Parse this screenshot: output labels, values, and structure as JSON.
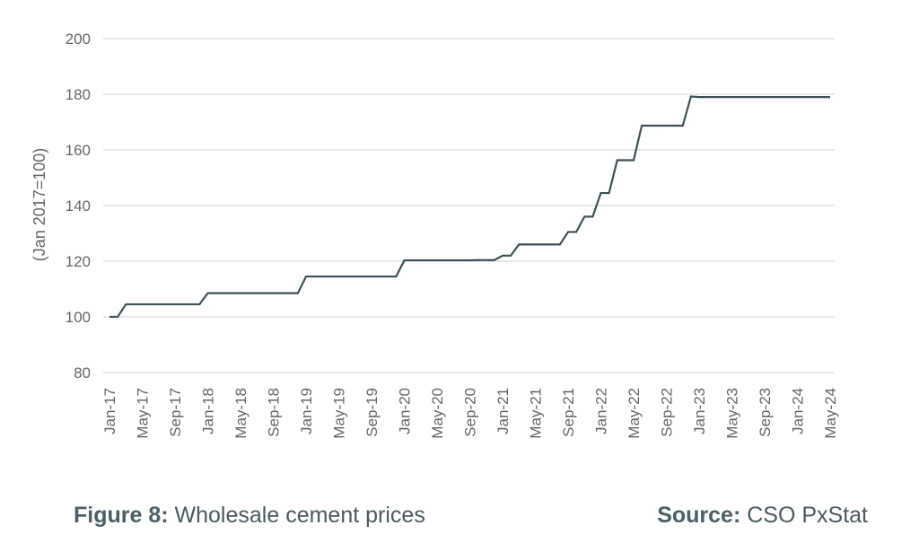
{
  "caption": {
    "figure_label": "Figure 8:",
    "figure_text": "Wholesale cement prices",
    "source_label": "Source:",
    "source_text": "CSO PxStat"
  },
  "colors": {
    "line": "#3d5157",
    "grid": "#d9d9d9",
    "text": "#666666"
  },
  "chart_data": {
    "type": "line",
    "ylabel": "(Jan 2017=100)",
    "xlabel": "",
    "ylim": [
      80,
      200
    ],
    "yticks": [
      80,
      100,
      120,
      140,
      160,
      180,
      200
    ],
    "grid": true,
    "x_tick_labels": [
      "Jan-17",
      "May-17",
      "Sep-17",
      "Jan-18",
      "May-18",
      "Sep-18",
      "Jan-19",
      "May-19",
      "Sep-19",
      "Jan-20",
      "May-20",
      "Sep-20",
      "Jan-21",
      "May-21",
      "Sep-21",
      "Jan-22",
      "May-22",
      "Sep-22",
      "Jan-23",
      "May-23",
      "Sep-23",
      "Jan-24",
      "May-24"
    ],
    "x_start": "Jan-17",
    "x_end": "May-24",
    "series": [
      {
        "values": [
          100,
          100,
          104.5,
          104.5,
          104.5,
          104.5,
          104.5,
          104.5,
          104.5,
          104.5,
          104.5,
          104.5,
          108.5,
          108.5,
          108.5,
          108.5,
          108.5,
          108.5,
          108.5,
          108.5,
          108.5,
          108.5,
          108.5,
          108.5,
          114.5,
          114.5,
          114.5,
          114.5,
          114.5,
          114.5,
          114.5,
          114.5,
          114.5,
          114.5,
          114.5,
          114.5,
          120.3,
          120.3,
          120.3,
          120.3,
          120.3,
          120.3,
          120.3,
          120.3,
          120.3,
          120.4,
          120.4,
          120.4,
          122,
          122,
          126,
          126,
          126,
          126,
          126,
          126,
          130.5,
          130.5,
          136,
          136,
          144.5,
          144.5,
          156.3,
          156.3,
          156.3,
          168.7,
          168.7,
          168.7,
          168.7,
          168.7,
          168.7,
          179.2,
          179,
          179,
          179,
          179,
          179,
          179,
          179,
          179,
          179,
          179,
          179,
          179,
          179,
          179,
          179,
          179,
          179
        ]
      }
    ]
  }
}
